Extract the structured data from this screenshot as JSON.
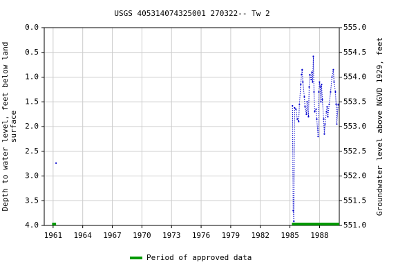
{
  "chart_data": {
    "type": "line",
    "title": "USGS 405314074325001 270322-- Tw 2",
    "ylabel": "Depth to water level, feet below land surface",
    "y2label": "Groundwater level above NGVD 1929, feet",
    "xlim": [
      1960.1,
      1990.0
    ],
    "xticks": [
      1961,
      1964,
      1967,
      1970,
      1973,
      1976,
      1979,
      1982,
      1985,
      1988
    ],
    "ylim": [
      0,
      4
    ],
    "y_inverted": true,
    "yticks": [
      {
        "value": 0,
        "label": "0.0"
      },
      0.5,
      {
        "value": 1,
        "label": "1.0"
      },
      1.5,
      {
        "value": 2,
        "label": "2.0"
      },
      2.5,
      {
        "value": 3,
        "label": "3.0"
      },
      3.5,
      {
        "value": 4,
        "label": "4.0"
      }
    ],
    "y2lim": [
      555,
      551
    ],
    "y2ticks": [
      {
        "value": 555,
        "label": "555.0"
      },
      554.5,
      {
        "value": 554,
        "label": "554.0"
      },
      553.5,
      {
        "value": 553,
        "label": "553.0"
      },
      552.5,
      {
        "value": 552,
        "label": "552.0"
      },
      551.5,
      {
        "value": 551,
        "label": "551.0"
      }
    ],
    "x": [
      1961.3,
      1985.26,
      1985.33,
      1985.4,
      1985.47,
      1985.61,
      1985.75,
      1985.89,
      1985.96,
      1986.1,
      1986.17,
      1986.24,
      1986.31,
      1986.46,
      1986.53,
      1986.67,
      1986.74,
      1986.88,
      1986.95,
      1987.02,
      1987.16,
      1987.23,
      1987.3,
      1987.37,
      1987.44,
      1987.51,
      1987.65,
      1987.72,
      1987.86,
      1987.93,
      1988.0,
      1988.07,
      1988.14,
      1988.21,
      1988.28,
      1988.42,
      1988.49,
      1988.56,
      1988.7,
      1988.77,
      1988.84,
      1988.98,
      1989.12,
      1989.26,
      1989.4,
      1989.47,
      1989.61,
      1989.68,
      1989.75,
      1989.89
    ],
    "series": [
      {
        "color": "#0000cc",
        "values": [
          2.74,
          1.58,
          3.7,
          3.92,
          1.62,
          1.65,
          1.85,
          1.9,
          1.55,
          1.15,
          0.95,
          0.85,
          1.1,
          1.4,
          1.6,
          1.75,
          1.5,
          1.8,
          1.2,
          0.95,
          1.05,
          0.9,
          1.1,
          0.58,
          1.3,
          1.7,
          1.65,
          1.85,
          2.2,
          1.3,
          1.1,
          1.2,
          1.5,
          1.15,
          1.45,
          1.85,
          2.15,
          1.95,
          1.7,
          1.6,
          1.8,
          1.55,
          1.3,
          1.0,
          0.85,
          1.1,
          1.3,
          1.55,
          1.95,
          1.55
        ]
      }
    ],
    "approved": {
      "name": "Period of approved data",
      "color": "#009900",
      "periods": [
        [
          1960.9,
          1961.3
        ],
        [
          1985.2,
          1990.0
        ]
      ]
    },
    "grid": true
  }
}
